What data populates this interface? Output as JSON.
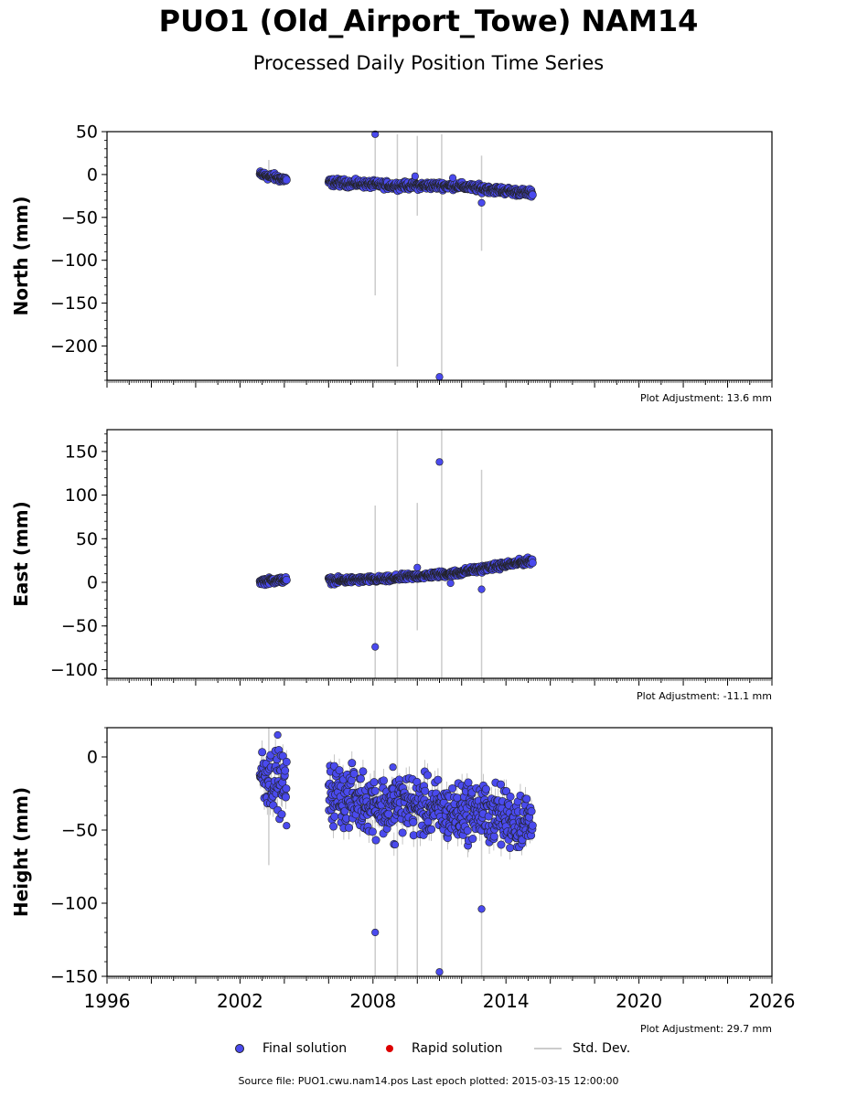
{
  "header": {
    "title": "PUO1 (Old_Airport_Towe) NAM14",
    "subtitle": "Processed Daily Position Time Series"
  },
  "legend": {
    "final": "Final solution",
    "rapid": "Rapid solution",
    "stddev": "Std. Dev.",
    "final_color": "#4a4aee",
    "rapid_color": "#dd0000",
    "stddev_color": "#cccccc"
  },
  "footer": "Source file: PUO1.cwu.nam14.pos  Last epoch plotted: 2015-03-15 12:00:00",
  "chart_data": [
    {
      "type": "scatter",
      "ylabel": "North (mm)",
      "xlim": [
        1996,
        2026
      ],
      "ylim": [
        -240,
        50
      ],
      "yticks": [
        50,
        0,
        -50,
        -100,
        -150,
        -200
      ],
      "ytick_labels": [
        "50",
        "0",
        "−50",
        "−100",
        "−150",
        "−200"
      ],
      "adjustment": "Plot Adjustment: 13.6 mm",
      "series": [
        {
          "segments": [
            {
              "x0": 2002.9,
              "x1": 2004.1,
              "y0": 0,
              "y1": -6,
              "spread": 3
            },
            {
              "x0": 2006.0,
              "x1": 2009.0,
              "y0": -9,
              "y1": -13,
              "spread": 3
            },
            {
              "x0": 2009.0,
              "x1": 2012.0,
              "y0": -13,
              "y1": -13,
              "spread": 3
            },
            {
              "x0": 2012.0,
              "x1": 2015.2,
              "y0": -14,
              "y1": -22,
              "spread": 3
            }
          ],
          "outliers": [
            {
              "x": 2008.1,
              "y": 47
            },
            {
              "x": 2009.9,
              "y": -2
            },
            {
              "x": 2011.6,
              "y": -4
            },
            {
              "x": 2012.9,
              "y": -33
            },
            {
              "x": 2011.0,
              "y": -236
            }
          ],
          "stddev_bars": [
            {
              "x": 2003.3,
              "lo": -10,
              "hi": 17
            },
            {
              "x": 2008.1,
              "lo": -141,
              "hi": 47
            },
            {
              "x": 2009.1,
              "lo": -224,
              "hi": 47
            },
            {
              "x": 2010.0,
              "lo": -48,
              "hi": 45
            },
            {
              "x": 2011.1,
              "lo": -236,
              "hi": 47
            },
            {
              "x": 2012.9,
              "lo": -89,
              "hi": 22
            }
          ]
        }
      ]
    },
    {
      "type": "scatter",
      "ylabel": "East (mm)",
      "xlim": [
        1996,
        2026
      ],
      "ylim": [
        -110,
        175
      ],
      "yticks": [
        150,
        100,
        50,
        0,
        -50,
        -100
      ],
      "ytick_labels": [
        "150",
        "100",
        "50",
        "0",
        "−50",
        "−100"
      ],
      "adjustment": "Plot Adjustment: -11.1 mm",
      "series": [
        {
          "segments": [
            {
              "x0": 2002.9,
              "x1": 2004.1,
              "y0": 1,
              "y1": 3,
              "spread": 2.5
            },
            {
              "x0": 2006.0,
              "x1": 2009.0,
              "y0": 2,
              "y1": 4,
              "spread": 2.5
            },
            {
              "x0": 2009.0,
              "x1": 2012.0,
              "y0": 5,
              "y1": 11,
              "spread": 2.5
            },
            {
              "x0": 2012.0,
              "x1": 2015.2,
              "y0": 12,
              "y1": 25,
              "spread": 2.5
            }
          ],
          "outliers": [
            {
              "x": 2008.1,
              "y": -74
            },
            {
              "x": 2010.0,
              "y": 17
            },
            {
              "x": 2011.0,
              "y": 138
            },
            {
              "x": 2011.5,
              "y": -1
            },
            {
              "x": 2012.9,
              "y": -8
            }
          ],
          "stddev_bars": [
            {
              "x": 2008.1,
              "lo": -110,
              "hi": 88
            },
            {
              "x": 2009.1,
              "lo": -110,
              "hi": 175
            },
            {
              "x": 2010.0,
              "lo": -55,
              "hi": 91
            },
            {
              "x": 2011.1,
              "lo": -110,
              "hi": 175
            },
            {
              "x": 2012.9,
              "lo": -110,
              "hi": 129
            }
          ]
        }
      ]
    },
    {
      "type": "scatter",
      "ylabel": "Height (mm)",
      "xlim": [
        1996,
        2026
      ],
      "ylim": [
        -150,
        20
      ],
      "yticks": [
        0,
        -50,
        -100,
        -150
      ],
      "ytick_labels": [
        "0",
        "−50",
        "−100",
        "−150"
      ],
      "xticks": [
        1996,
        2002,
        2008,
        2014,
        2020,
        2026
      ],
      "adjustment": "Plot Adjustment: 29.7 mm",
      "series": [
        {
          "segments": [
            {
              "x0": 2002.9,
              "x1": 2004.1,
              "y0": -10,
              "y1": -20,
              "spread": 14
            },
            {
              "x0": 2006.0,
              "x1": 2009.0,
              "y0": -25,
              "y1": -35,
              "spread": 14
            },
            {
              "x0": 2009.0,
              "x1": 2012.0,
              "y0": -30,
              "y1": -40,
              "spread": 14
            },
            {
              "x0": 2012.0,
              "x1": 2015.2,
              "y0": -35,
              "y1": -45,
              "spread": 14
            }
          ],
          "outliers": [
            {
              "x": 2003.7,
              "y": 15
            },
            {
              "x": 2004.1,
              "y": -47
            },
            {
              "x": 2008.1,
              "y": -120
            },
            {
              "x": 2009.0,
              "y": -60
            },
            {
              "x": 2008.9,
              "y": -7
            },
            {
              "x": 2011.0,
              "y": -147
            },
            {
              "x": 2012.9,
              "y": -104
            }
          ],
          "stddev_bars": [
            {
              "x": 2003.3,
              "lo": -74,
              "hi": 20
            },
            {
              "x": 2008.1,
              "lo": -150,
              "hi": 20
            },
            {
              "x": 2009.1,
              "lo": -150,
              "hi": 20
            },
            {
              "x": 2010.0,
              "lo": -150,
              "hi": 20
            },
            {
              "x": 2011.1,
              "lo": -150,
              "hi": 20
            },
            {
              "x": 2012.9,
              "lo": -150,
              "hi": 20
            }
          ]
        }
      ]
    }
  ]
}
